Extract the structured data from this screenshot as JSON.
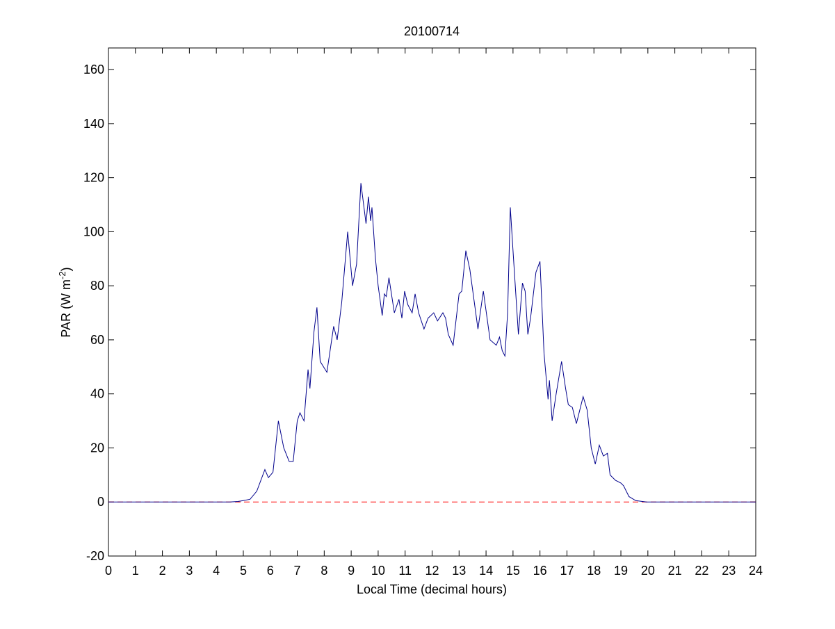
{
  "chart_data": {
    "type": "line",
    "title": "20100714",
    "xlabel": "Local Time (decimal hours)",
    "ylabel": [
      "PAR (W m",
      "-2",
      ")"
    ],
    "x": [
      0,
      4.5,
      4.8,
      5.0,
      5.25,
      5.5,
      5.8,
      5.93,
      6.1,
      6.3,
      6.5,
      6.7,
      6.85,
      7.0,
      7.1,
      7.25,
      7.4,
      7.47,
      7.62,
      7.73,
      7.85,
      8.1,
      8.35,
      8.48,
      8.65,
      8.87,
      9.05,
      9.2,
      9.36,
      9.55,
      9.64,
      9.72,
      9.77,
      9.9,
      10.0,
      10.15,
      10.23,
      10.3,
      10.4,
      10.6,
      10.77,
      10.88,
      10.98,
      11.1,
      11.26,
      11.37,
      11.5,
      11.7,
      11.85,
      12.06,
      12.2,
      12.4,
      12.5,
      12.6,
      12.78,
      13.0,
      13.1,
      13.25,
      13.4,
      13.7,
      13.9,
      14.15,
      14.38,
      14.5,
      14.6,
      14.7,
      14.8,
      14.9,
      15.0,
      15.2,
      15.35,
      15.45,
      15.55,
      15.65,
      15.85,
      16.0,
      16.15,
      16.3,
      16.35,
      16.45,
      16.6,
      16.8,
      16.95,
      17.05,
      17.2,
      17.35,
      17.6,
      17.75,
      17.9,
      18.05,
      18.2,
      18.35,
      18.5,
      18.6,
      18.8,
      19.0,
      19.1,
      19.3,
      19.55,
      19.95,
      24
    ],
    "series": [
      {
        "name": "PAR",
        "color": "#00008b",
        "values": [
          0,
          0,
          0.2,
          0.5,
          1,
          4,
          12,
          9,
          11,
          30,
          20,
          15,
          15,
          30,
          33,
          30,
          49,
          42,
          63,
          72,
          52,
          48,
          65,
          60,
          74,
          100,
          80,
          88,
          118,
          103,
          113,
          104,
          109,
          90,
          80,
          69,
          77,
          76,
          83,
          70,
          75,
          68,
          78,
          73,
          70,
          77,
          70,
          64,
          68,
          70,
          67,
          70,
          68,
          62,
          58,
          77,
          78,
          93,
          86,
          64,
          78,
          60,
          58,
          61,
          56,
          54,
          70,
          109,
          93,
          62,
          81,
          78,
          62,
          68,
          85,
          89,
          55,
          38,
          45,
          30,
          40,
          52,
          42,
          36,
          35,
          29,
          39,
          34,
          20,
          14,
          21,
          17,
          18,
          10,
          8,
          7,
          6,
          2,
          0.5,
          0,
          0
        ]
      }
    ],
    "reference_line": {
      "value": 0,
      "color": "#ff0000",
      "style": "dashed"
    },
    "xlim": [
      0,
      24
    ],
    "xticks": [
      0,
      1,
      2,
      3,
      4,
      5,
      6,
      7,
      8,
      9,
      10,
      11,
      12,
      13,
      14,
      15,
      16,
      17,
      18,
      19,
      20,
      21,
      22,
      23,
      24
    ],
    "ylim": [
      -20,
      168
    ],
    "yticks": [
      -20,
      0,
      20,
      40,
      60,
      80,
      100,
      120,
      140,
      160
    ],
    "grid": false
  }
}
